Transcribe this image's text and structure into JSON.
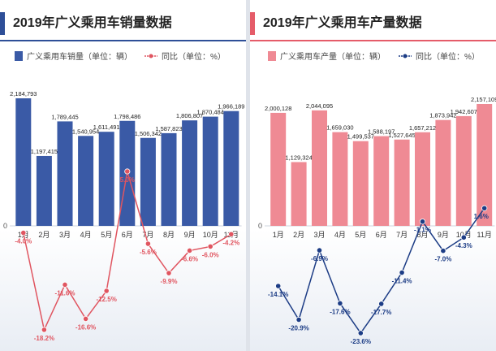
{
  "colors": {
    "sales_bar": "#3a5aa6",
    "sales_line": "#e05560",
    "prod_bar": "#ef8a94",
    "prod_line": "#1c3c85"
  },
  "chart_data": [
    {
      "type": "bar",
      "title": "2019年广义乘用车销量数据",
      "legend": [
        {
          "label": "广义乘用车销量（单位：辆）",
          "marker": "bar"
        },
        {
          "label": "同比（单位：%）",
          "marker": "line"
        }
      ],
      "zero_label": "0",
      "categories": [
        "1月",
        "2月",
        "3月",
        "4月",
        "5月",
        "6月",
        "7月",
        "8月",
        "9月",
        "10月",
        "11月"
      ],
      "series": [
        {
          "values": [
            2184793,
            1197415,
            1789445,
            1540954,
            1611491,
            1798486,
            1506342,
            1587823,
            1806807,
            1870484,
            1966189
          ],
          "labels": [
            "2,184,793",
            "1,197,415",
            "1,789,445",
            "1,540,954",
            "1,611,491",
            "1,798,486",
            "1,506,342",
            "1,587,823",
            "1,806,807",
            "1,870,484",
            "1,966,189"
          ]
        },
        {
          "values": [
            -4.0,
            -18.2,
            -11.6,
            -16.6,
            -12.5,
            5.0,
            -5.6,
            -9.9,
            -6.6,
            -6.0,
            -4.2
          ],
          "labels": [
            "-4.0%",
            "-18.2%",
            "-11.6%",
            "-16.6%",
            "-12.5%",
            "5.0%",
            "-5.6%",
            "-9.9%",
            "-6.6%",
            "-6.0%",
            "-4.2%"
          ]
        }
      ]
    },
    {
      "type": "bar",
      "title": "2019年广义乘用车产量数据",
      "legend": [
        {
          "label": "广义乘用车产量（单位：辆）",
          "marker": "bar"
        },
        {
          "label": "同比（单位：%）",
          "marker": "line"
        }
      ],
      "zero_label": "0",
      "categories": [
        "1月",
        "2月",
        "3月",
        "4月",
        "5月",
        "6月",
        "7月",
        "8月",
        "9月",
        "10月",
        "11月"
      ],
      "series": [
        {
          "values": [
            2000128,
            1129324,
            2044095,
            1659030,
            1499537,
            1588197,
            1527645,
            1657212,
            1873942,
            1942607,
            2157109
          ],
          "labels": [
            "2,000,128",
            "1,129,324",
            "2,044,095",
            "1,659,030",
            "1,499,537",
            "1,588,197",
            "1,527,645",
            "1,657,212",
            "1,873,942",
            "1,942,607",
            "2,157,109"
          ]
        },
        {
          "values": [
            -14.1,
            -20.9,
            -6.9,
            -17.6,
            -23.6,
            -17.7,
            -11.4,
            -1.1,
            -7.0,
            -4.3,
            1.6
          ],
          "labels": [
            "-14.1%",
            "-20.9%",
            "-6.9%",
            "-17.6%",
            "-23.6%",
            "-17.7%",
            "-11.4%",
            "-1.1%",
            "-7.0%",
            "-4.3%",
            "1.6%"
          ]
        }
      ]
    }
  ]
}
